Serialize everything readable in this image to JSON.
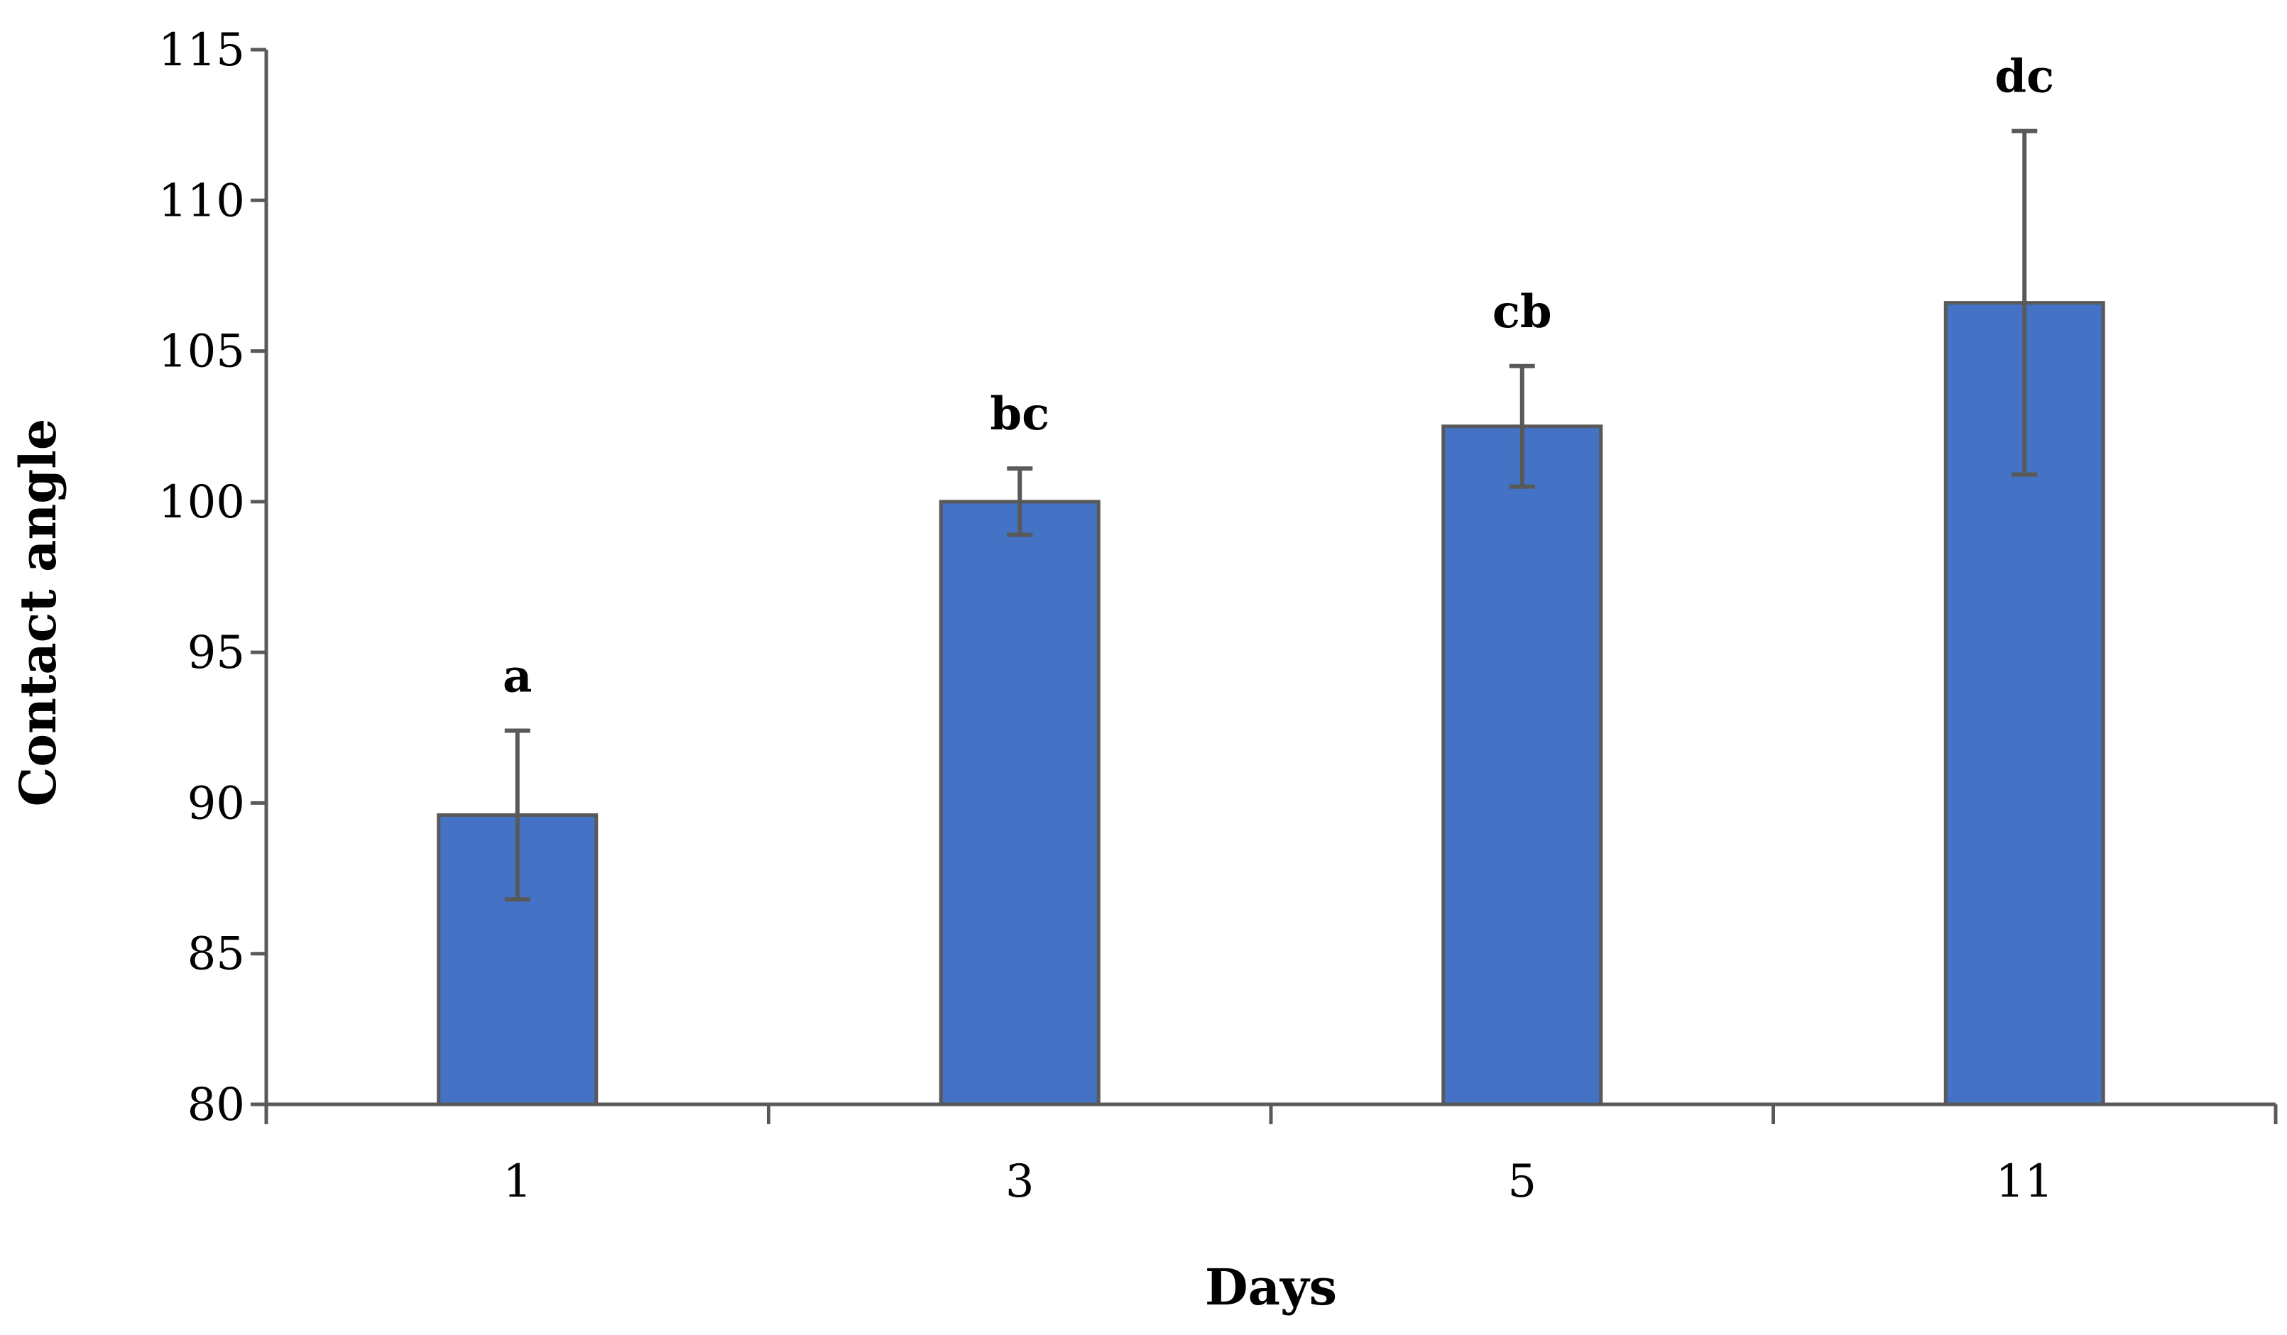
{
  "chart_data": {
    "type": "bar",
    "title": "",
    "xlabel": "Days",
    "ylabel": "Contact angle",
    "categories": [
      "1",
      "3",
      "5",
      "11"
    ],
    "series": [
      {
        "values": [
          89.6,
          100.0,
          102.5,
          106.6
        ],
        "error": [
          2.8,
          1.1,
          2.0,
          5.7
        ],
        "annotations": [
          "a",
          "bc",
          "cb",
          "dc"
        ]
      }
    ],
    "ylim": [
      80,
      115
    ],
    "yticks": [
      80,
      85,
      90,
      95,
      100,
      105,
      110,
      115
    ],
    "grid": false,
    "legend": "none",
    "colors": {
      "bar_fill": "#4472C4",
      "bar_stroke": "#595959",
      "axis": "#595959",
      "error_bar": "#595959"
    }
  }
}
